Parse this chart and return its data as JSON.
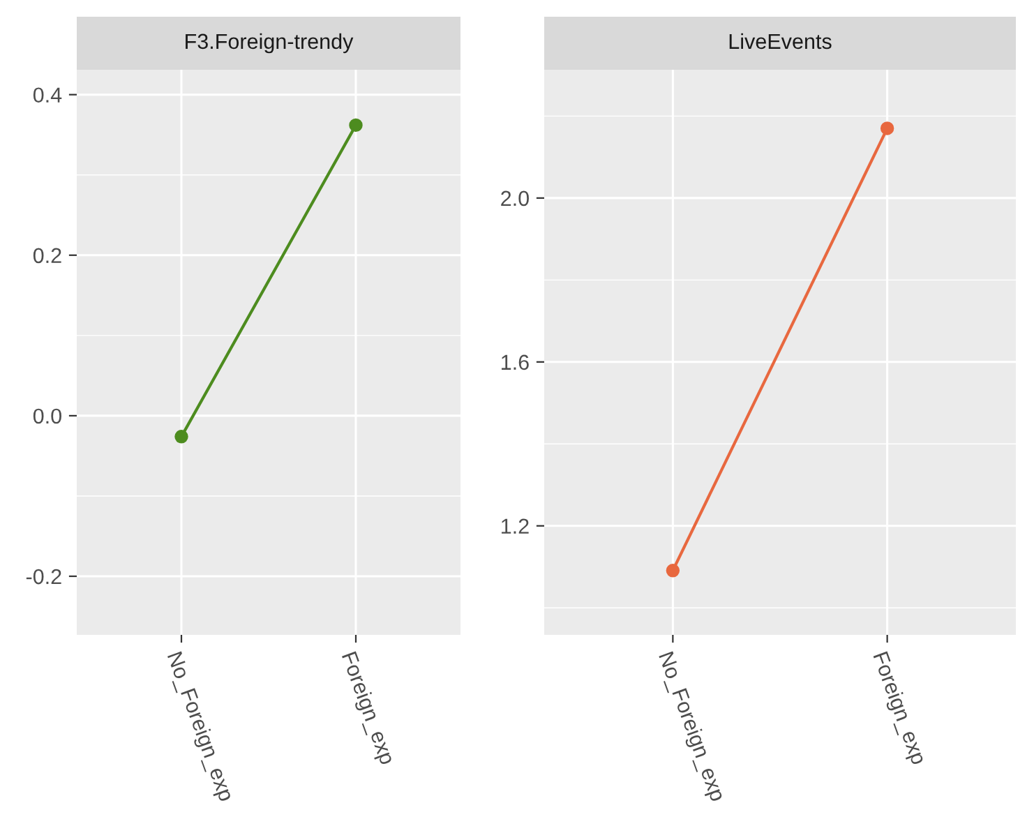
{
  "chart_data": [
    {
      "type": "line",
      "title": "F3.Foreign-trendy",
      "categories": [
        "No_Foreign_exp",
        "Foreign_exp"
      ],
      "series": [
        {
          "color": "#4d8c1f",
          "values": [
            -0.026,
            0.362
          ]
        }
      ],
      "ylim": [
        -0.273,
        0.431
      ],
      "yticks": [
        {
          "value": -0.2,
          "label": "-0.2"
        },
        {
          "value": 0,
          "label": "0.0"
        },
        {
          "value": 0.2,
          "label": "0.2"
        },
        {
          "value": 0.4,
          "label": "0.4"
        }
      ],
      "grid": true,
      "marker": "circle",
      "line_style": "solid"
    },
    {
      "type": "line",
      "title": "LiveEvents",
      "categories": [
        "No_Foreign_exp",
        "Foreign_exp"
      ],
      "series": [
        {
          "color": "#e8683f",
          "values": [
            1.091,
            2.17
          ]
        }
      ],
      "ylim": [
        0.934,
        2.313
      ],
      "yticks": [
        {
          "value": 1.2,
          "label": "1.2"
        },
        {
          "value": 1.6,
          "label": "1.6"
        },
        {
          "value": 2.0,
          "label": "2.0"
        }
      ],
      "grid": true,
      "marker": "circle",
      "line_style": "solid"
    }
  ]
}
